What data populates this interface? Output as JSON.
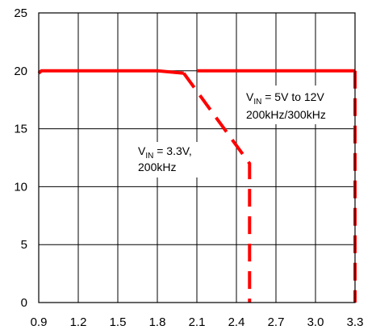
{
  "chart_data": {
    "type": "line",
    "title": "",
    "xlabel": "",
    "ylabel": "",
    "xlim": [
      0.9,
      3.3
    ],
    "ylim": [
      0,
      25
    ],
    "grid": true,
    "x_ticks": [
      "0.9",
      "1.2",
      "1.5",
      "1.8",
      "2.1",
      "2.4",
      "2.7",
      "3.0",
      "3.3"
    ],
    "y_ticks": [
      "0",
      "5",
      "10",
      "15",
      "20",
      "25"
    ],
    "series": [
      {
        "color": "#ff0000",
        "style": "solid-then-dashed",
        "solid_points": [
          [
            0.9,
            19.8
          ],
          [
            0.92,
            20
          ],
          [
            1.8,
            20
          ],
          [
            2.0,
            19.8
          ]
        ],
        "dashed_points": [
          [
            2.0,
            19.8
          ],
          [
            2.5,
            12
          ],
          [
            2.5,
            0
          ]
        ]
      },
      {
        "color": "#ff0000",
        "style": "solid-then-dashed",
        "solid_points": [
          [
            2.1,
            20
          ],
          [
            3.3,
            20
          ]
        ],
        "dashed_points": [
          [
            3.3,
            20
          ],
          [
            3.3,
            0
          ]
        ]
      }
    ],
    "annotations": [
      {
        "id": "vin-5v-12v",
        "prefix": "V",
        "subscript": "IN",
        "rest": " = 5V to 12V",
        "line2": "200kHz/300kHz"
      },
      {
        "id": "vin-3v3",
        "prefix": "V",
        "subscript": "IN",
        "rest": " = 3.3V,",
        "line2": "200kHz"
      }
    ]
  }
}
